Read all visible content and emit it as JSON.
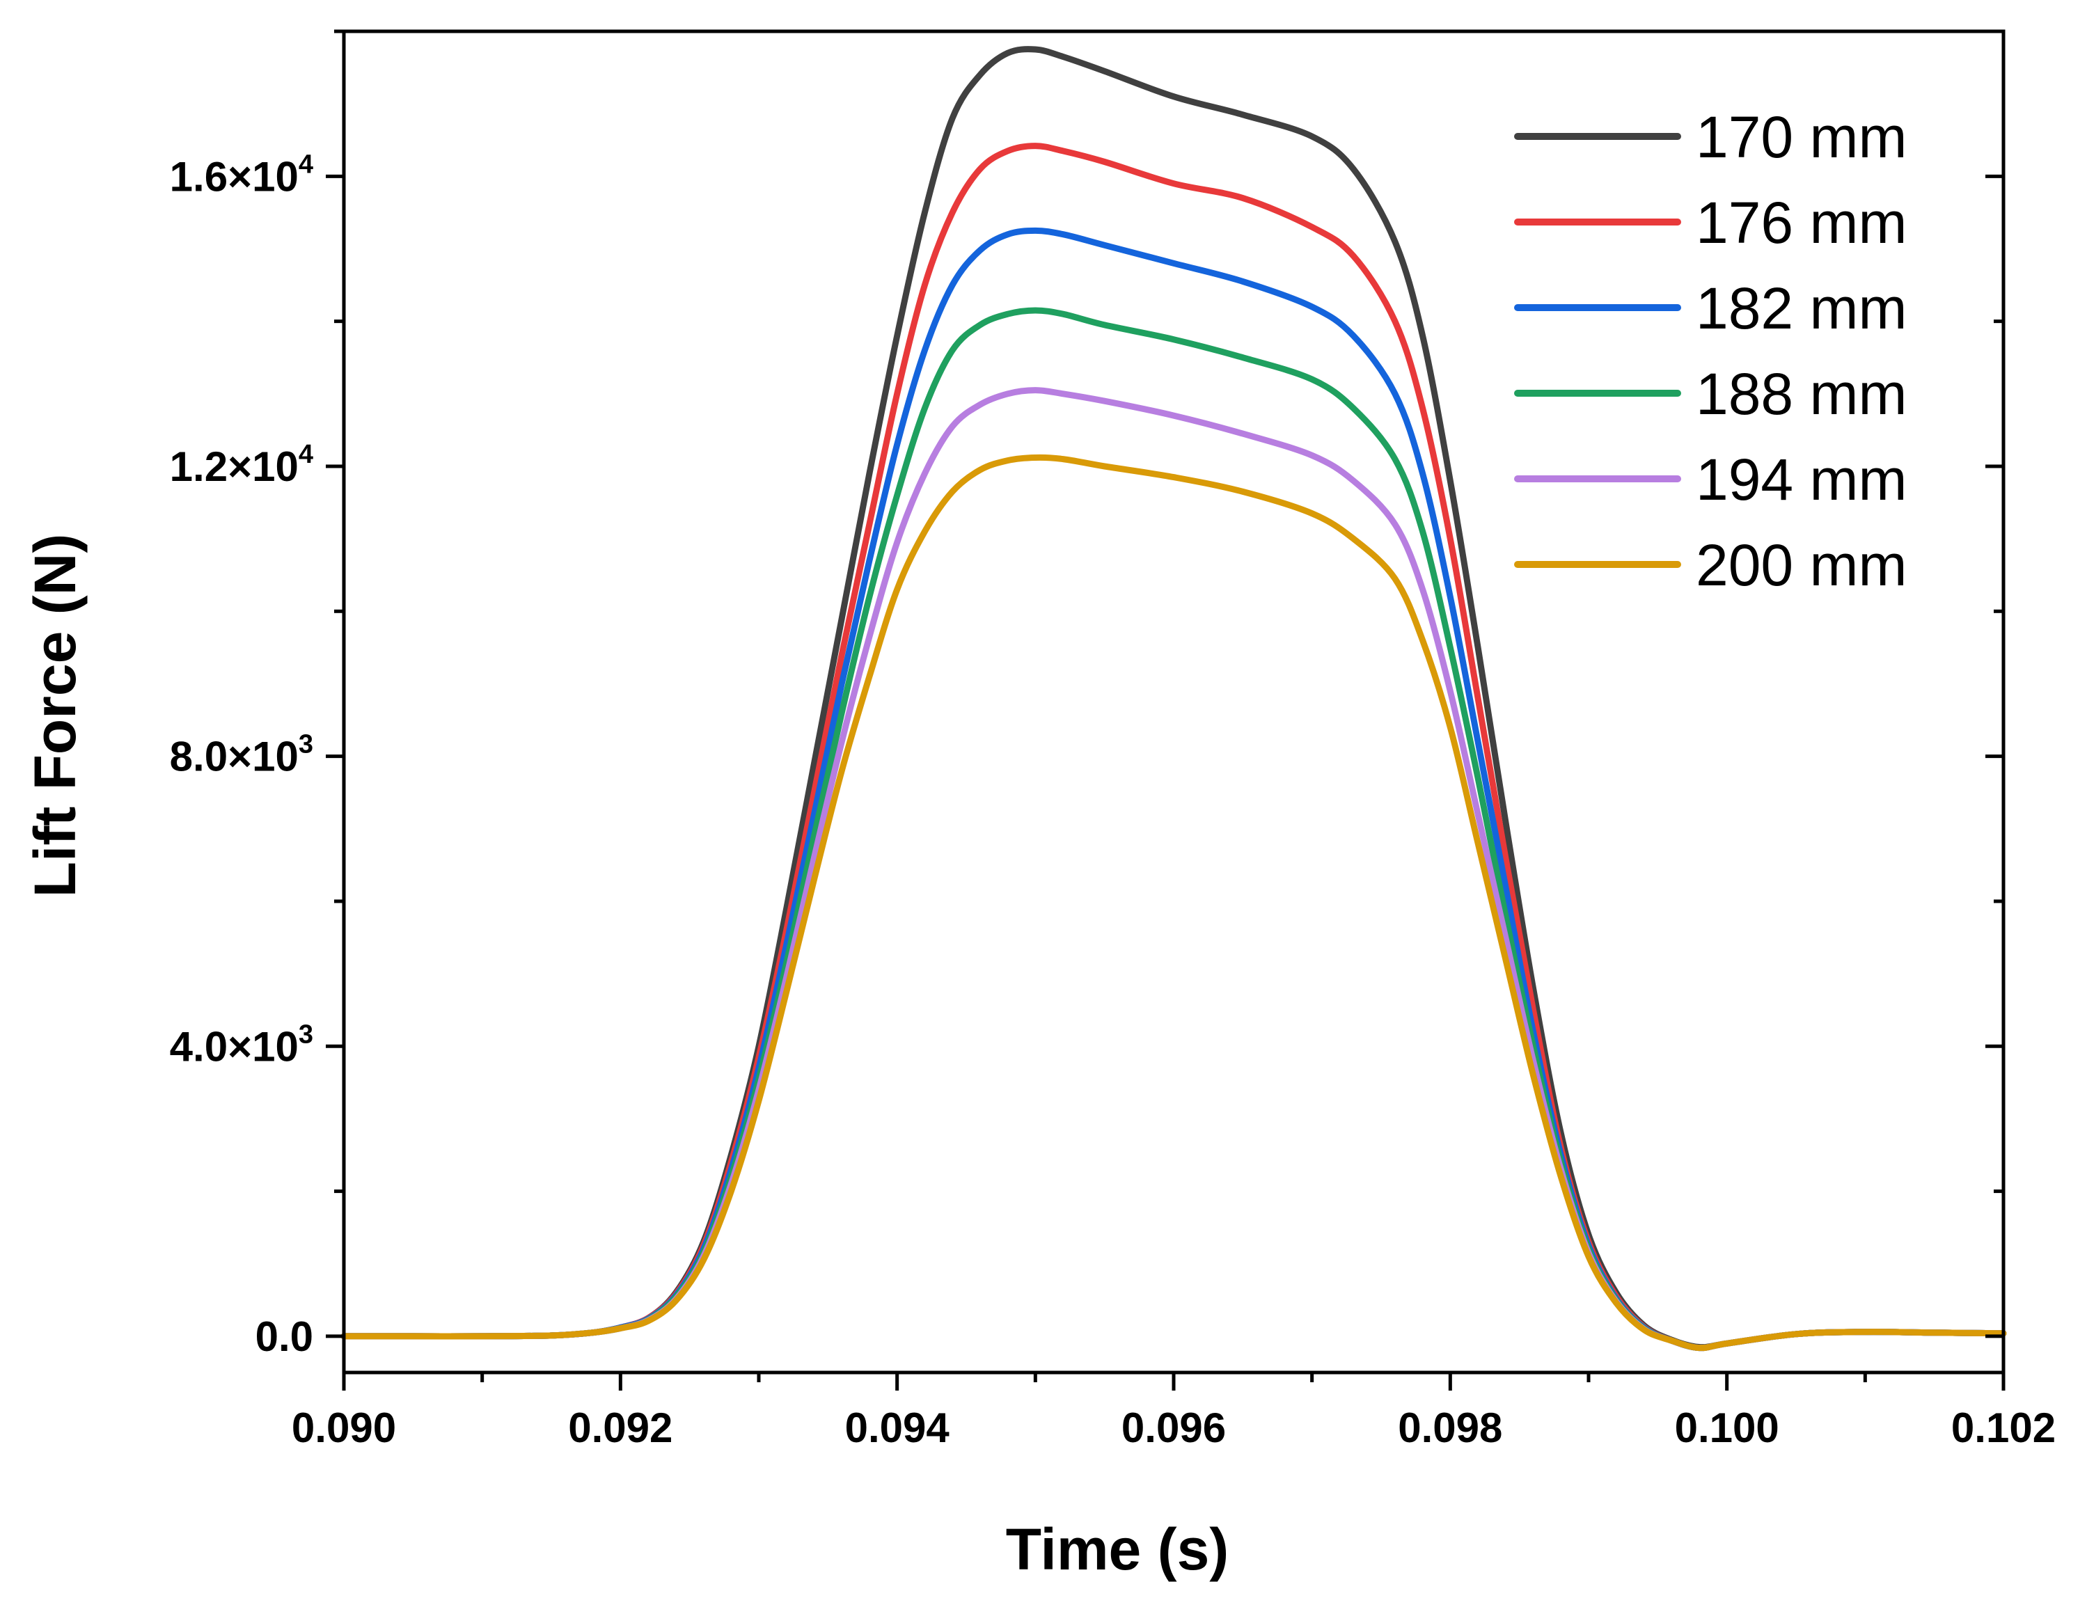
{
  "chart_data": {
    "type": "line",
    "title": "",
    "xlabel": "Time (s)",
    "ylabel": "Lift Force (N)",
    "xlim": [
      0.09,
      0.102
    ],
    "ylim": [
      -500,
      18000
    ],
    "x_ticks": [
      0.09,
      0.092,
      0.094,
      0.096,
      0.098,
      0.1,
      0.102
    ],
    "x_tick_labels": [
      "0.090",
      "0.092",
      "0.094",
      "0.096",
      "0.098",
      "0.100",
      "0.102"
    ],
    "y_ticks": [
      {
        "value": 0,
        "base": "0.0",
        "exp": ""
      },
      {
        "value": 4000,
        "base": "4.0×10",
        "exp": "3"
      },
      {
        "value": 8000,
        "base": "8.0×10",
        "exp": "3"
      },
      {
        "value": 12000,
        "base": "1.2×10",
        "exp": "4"
      },
      {
        "value": 16000,
        "base": "1.6×10",
        "exp": "4"
      }
    ],
    "legend_position": "top-right",
    "grid": false,
    "x": [
      0.09,
      0.0905,
      0.091,
      0.0915,
      0.0918,
      0.092,
      0.0922,
      0.0924,
      0.0926,
      0.0928,
      0.093,
      0.0932,
      0.0934,
      0.0936,
      0.0938,
      0.094,
      0.0942,
      0.0944,
      0.0946,
      0.0948,
      0.095,
      0.0952,
      0.0955,
      0.096,
      0.0965,
      0.097,
      0.0973,
      0.0976,
      0.0978,
      0.098,
      0.0982,
      0.0984,
      0.0986,
      0.0988,
      0.099,
      0.0992,
      0.0994,
      0.0996,
      0.0998,
      0.1,
      0.1005,
      0.101,
      0.1015,
      0.102
    ],
    "series": [
      {
        "name": "170 mm",
        "color": "#404040",
        "values": [
          0,
          0,
          0,
          10,
          50,
          120,
          250,
          600,
          1300,
          2500,
          4000,
          5900,
          7900,
          9900,
          11900,
          13800,
          15500,
          16800,
          17400,
          17700,
          17750,
          17650,
          17450,
          17100,
          16850,
          16550,
          16100,
          15100,
          13800,
          11800,
          9500,
          7100,
          4800,
          2800,
          1400,
          600,
          150,
          -50,
          -150,
          -100,
          30,
          60,
          50,
          40
        ]
      },
      {
        "name": "176 mm",
        "color": "#e8393a",
        "values": [
          0,
          0,
          0,
          10,
          50,
          120,
          250,
          580,
          1250,
          2400,
          3850,
          5600,
          7500,
          9400,
          11200,
          13000,
          14500,
          15500,
          16100,
          16350,
          16420,
          16350,
          16200,
          15900,
          15700,
          15300,
          14900,
          14000,
          12800,
          11000,
          8800,
          6600,
          4500,
          2600,
          1300,
          550,
          130,
          -60,
          -160,
          -100,
          30,
          60,
          50,
          40
        ]
      },
      {
        "name": "182 mm",
        "color": "#1464dc",
        "values": [
          0,
          0,
          0,
          10,
          50,
          120,
          240,
          560,
          1200,
          2300,
          3700,
          5400,
          7200,
          9000,
          10700,
          12300,
          13600,
          14500,
          14980,
          15200,
          15250,
          15200,
          15050,
          14800,
          14550,
          14200,
          13800,
          13000,
          11900,
          10200,
          8200,
          6200,
          4200,
          2500,
          1250,
          520,
          120,
          -60,
          -160,
          -100,
          30,
          60,
          50,
          40
        ]
      },
      {
        "name": "188 mm",
        "color": "#1fa05f",
        "values": [
          0,
          0,
          0,
          10,
          50,
          110,
          230,
          540,
          1150,
          2200,
          3550,
          5150,
          6900,
          8600,
          10200,
          11600,
          12800,
          13600,
          13950,
          14100,
          14150,
          14100,
          13950,
          13750,
          13500,
          13200,
          12800,
          12100,
          11100,
          9500,
          7700,
          5800,
          4000,
          2400,
          1200,
          500,
          110,
          -60,
          -160,
          -100,
          30,
          60,
          50,
          40
        ]
      },
      {
        "name": "194 mm",
        "color": "#b77ee0",
        "values": [
          0,
          0,
          0,
          10,
          50,
          110,
          220,
          510,
          1100,
          2100,
          3400,
          4950,
          6600,
          8200,
          9650,
          10950,
          11900,
          12550,
          12850,
          13000,
          13050,
          13000,
          12900,
          12700,
          12450,
          12150,
          11800,
          11200,
          10300,
          8900,
          7200,
          5500,
          3800,
          2300,
          1150,
          480,
          100,
          -60,
          -160,
          -100,
          30,
          60,
          50,
          40
        ]
      },
      {
        "name": "200 mm",
        "color": "#d99a07",
        "values": [
          0,
          0,
          0,
          10,
          50,
          110,
          210,
          490,
          1050,
          2000,
          3250,
          4750,
          6300,
          7800,
          9100,
          10300,
          11100,
          11650,
          11950,
          12080,
          12120,
          12100,
          12000,
          11850,
          11650,
          11350,
          11000,
          10450,
          9600,
          8400,
          6800,
          5200,
          3600,
          2200,
          1100,
          460,
          90,
          -60,
          -160,
          -100,
          30,
          60,
          50,
          40
        ]
      }
    ]
  }
}
